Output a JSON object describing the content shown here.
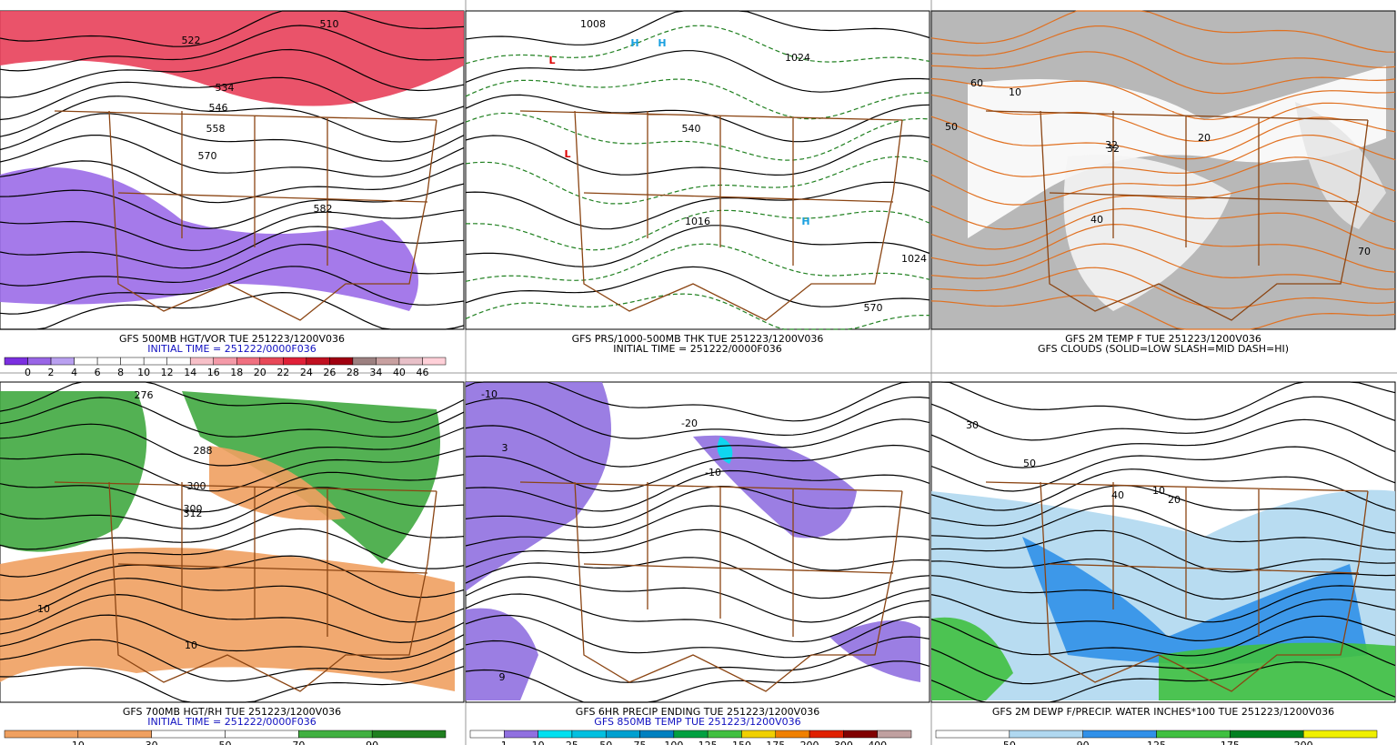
{
  "panels": [
    {
      "caption": [
        "GFS 500MB HGT/VOR TUE 251223/1200V036",
        "INITIAL TIME = 251222/0000F036"
      ],
      "colorbar": [
        "0",
        "2",
        "4",
        "6",
        "8",
        "10",
        "12",
        "14",
        "16",
        "18",
        "20",
        "22",
        "24",
        "26",
        "28",
        "34",
        "40",
        "46"
      ],
      "colorbar_colors": [
        "#7b2fe0",
        "#9966e6",
        "#b9a0f0",
        "#ffffff",
        "#ffffff",
        "#ffffff",
        "#ffffff",
        "#ffffff",
        "#f7c0c8",
        "#f49aa8",
        "#f07080",
        "#e84858",
        "#e02038",
        "#c01020",
        "#a00010",
        "#9c8080",
        "#c8a0a0",
        "#e8c0c8",
        "#ffd0d8"
      ],
      "labels": [
        "510",
        "522",
        "534",
        "546",
        "558",
        "570",
        "582"
      ]
    },
    {
      "caption": [
        "GFS PRS/1000-500MB THK TUE 251223/1200V036",
        "INITIAL TIME = 251222/0000F036"
      ],
      "labels": [
        "1008",
        "1024",
        "1016",
        "540",
        "570",
        "1024",
        "L",
        "L",
        "H",
        "H",
        "H"
      ]
    },
    {
      "caption": [
        "GFS 2M TEMP F TUE 251223/1200V036",
        "GFS CLOUDS (SOLID=LOW SLASH=MID DASH=HI)"
      ],
      "labels": [
        "32",
        "40",
        "50",
        "60",
        "70",
        "10",
        "32",
        "20"
      ]
    },
    {
      "caption": [
        "GFS 700MB HGT/RH TUE 251223/1200V036",
        "INITIAL TIME = 251222/0000F036"
      ],
      "colorbar": [
        "10",
        "30",
        "50",
        "70",
        "90"
      ],
      "colorbar_colors": [
        "#f0a060",
        "#f0a060",
        "#ffffff",
        "#ffffff",
        "#40b040",
        "#208020"
      ],
      "labels": [
        "276",
        "288",
        "300",
        "312",
        "300",
        "10",
        "10"
      ]
    },
    {
      "caption": [
        "GFS 6HR PRECIP ENDING TUE 251223/1200V036",
        "GFS 850MB TEMP TUE 251223/1200V036"
      ],
      "colorbar": [
        "1",
        "10",
        "25",
        "50",
        "75",
        "100",
        "125",
        "150",
        "175",
        "200",
        "300",
        "400"
      ],
      "colorbar_colors": [
        "#ffffff",
        "#9070e0",
        "#00e0f0",
        "#00c0e0",
        "#00a0d0",
        "#0080c0",
        "#00a040",
        "#40c040",
        "#f0d000",
        "#f08000",
        "#e02000",
        "#800000",
        "#c0a0a0"
      ],
      "labels": [
        "-10",
        "-20",
        "9",
        "3",
        "-10"
      ]
    },
    {
      "caption": [
        "GFS 2M DEWP F/PRECIP. WATER INCHES*100 TUE 251223/1200V036"
      ],
      "colorbar": [
        "50",
        "90",
        "125",
        "175",
        "200"
      ],
      "colorbar_colors": [
        "#ffffff",
        "#b0d8f0",
        "#3090e8",
        "#40c040",
        "#008020",
        "#f0f000"
      ],
      "labels": [
        "30",
        "40",
        "50",
        "20",
        "10"
      ]
    }
  ]
}
